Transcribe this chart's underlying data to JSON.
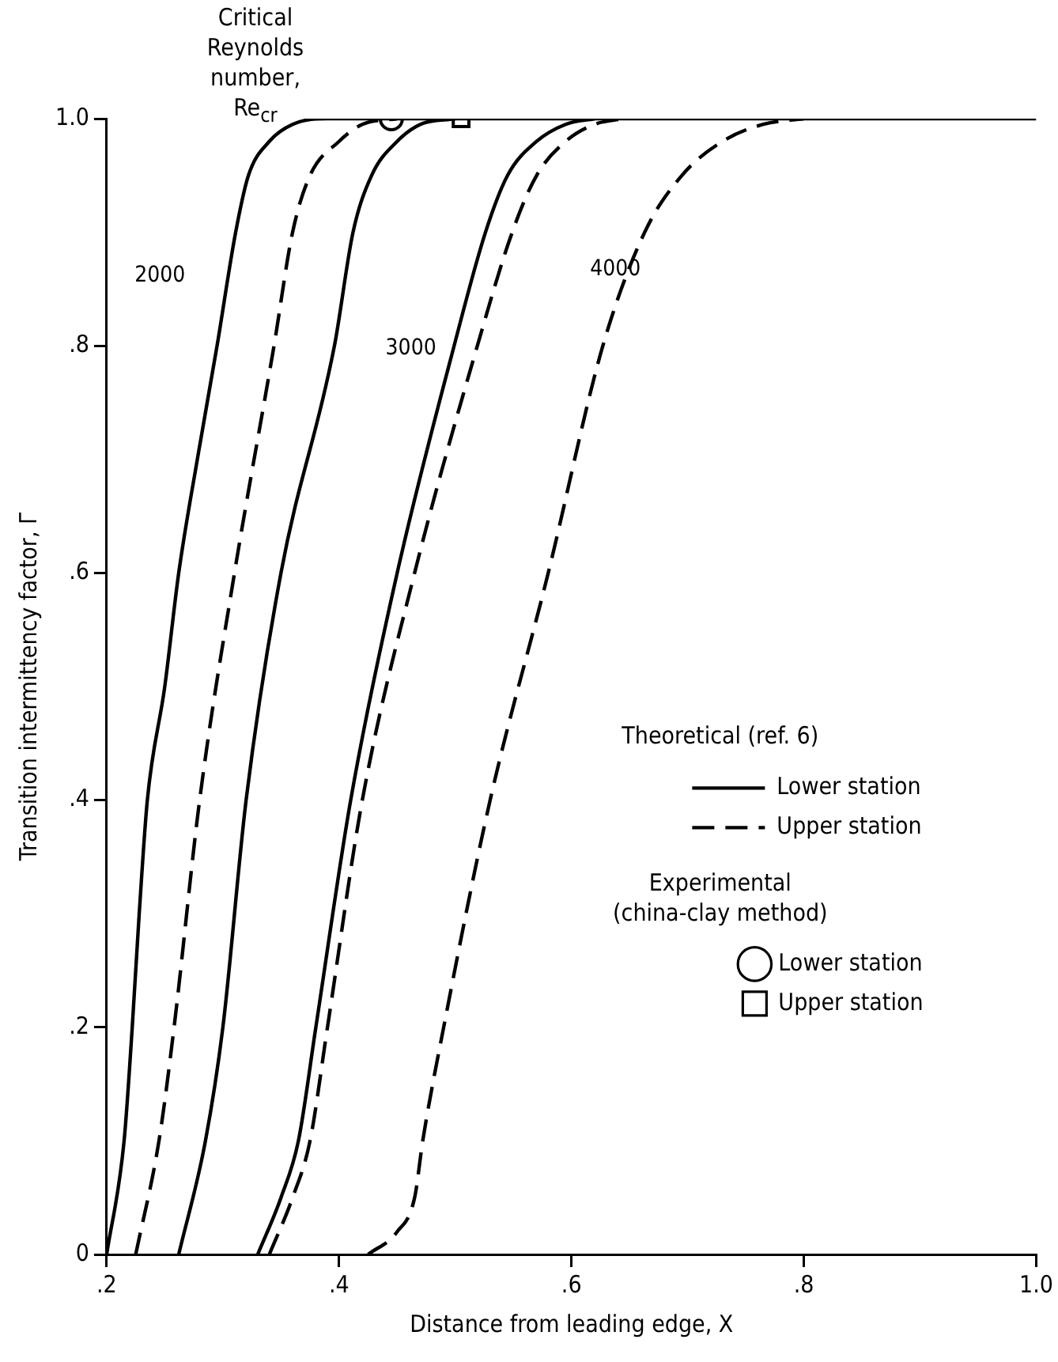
{
  "chart_data": {
    "type": "line",
    "xlabel": "Distance from leading edge, X",
    "ylabel": "Transition intermittency factor, Γ",
    "legend": "right",
    "xlim": [
      0.2,
      1.0
    ],
    "xticks": [
      {
        "value": 0.2,
        "label": ".2"
      },
      {
        "value": 0.4,
        "label": ".4"
      },
      {
        "value": 0.6,
        "label": ".6"
      },
      {
        "value": 0.8,
        "label": ".8"
      },
      {
        "value": 1.0,
        "label": "1.0"
      }
    ],
    "ylim": [
      0,
      1.0
    ],
    "yticks": [
      {
        "value": 0,
        "label": "0"
      },
      {
        "value": 0.2,
        "label": ".2"
      },
      {
        "value": 0.4,
        "label": ".4"
      },
      {
        "value": 0.6,
        "label": ".6"
      },
      {
        "value": 0.8,
        "label": ".8"
      },
      {
        "value": 1.0,
        "label": "1.0"
      }
    ],
    "grid": false,
    "annotations": [
      "Critical Reynolds number, Re$_{cr}$",
      "Theoretical (ref. 6)",
      "Experimental (china-clay method)",
      "2000",
      "3000",
      "4000"
    ],
    "series": [
      {
        "name": "Lower station",
        "line_style": "solid",
        "marker": "none",
        "color": "#000000",
        "x": [
          0.2,
          0.215,
          0.222,
          0.228,
          0.235,
          0.25,
          0.262,
          0.278,
          0.295,
          0.311,
          0.322,
          0.34,
          0.36,
          0.39,
          1.0
        ],
        "values": [
          0,
          0.1,
          0.2,
          0.3,
          0.4,
          0.5,
          0.6,
          0.7,
          0.8,
          0.9,
          0.95,
          0.98,
          0.995,
          1.0,
          1.0
        ]
      },
      {
        "name": "Upper station",
        "line_style": "dashed",
        "marker": "none",
        "color": "#000000",
        "x": [
          0.225,
          0.245,
          0.258,
          0.28,
          0.31,
          0.344,
          0.36,
          0.375,
          0.4,
          0.42,
          0.45
        ],
        "values": [
          0,
          0.1,
          0.2,
          0.4,
          0.6,
          0.8,
          0.9,
          0.95,
          0.98,
          0.995,
          1.0
        ]
      },
      {
        "line_style": "solid",
        "marker": "none",
        "color": "#000000",
        "x": [
          0.262,
          0.285,
          0.3,
          0.32,
          0.35,
          0.396,
          0.412,
          0.428,
          0.45,
          0.47,
          0.5
        ],
        "values": [
          0,
          0.1,
          0.2,
          0.4,
          0.6,
          0.8,
          0.9,
          0.95,
          0.98,
          0.995,
          1.0
        ]
      },
      {
        "line_style": "solid",
        "marker": "none",
        "color": "#000000",
        "x": [
          0.33,
          0.35,
          0.365,
          0.38,
          0.41,
          0.45,
          0.499,
          0.526,
          0.545,
          0.57,
          0.595,
          0.62
        ],
        "values": [
          0,
          0.05,
          0.1,
          0.2,
          0.4,
          0.6,
          0.8,
          0.9,
          0.95,
          0.98,
          0.995,
          1.0
        ]
      },
      {
        "line_style": "dashed",
        "marker": "none",
        "color": "#000000",
        "x": [
          0.34,
          0.36,
          0.375,
          0.39,
          0.42,
          0.465,
          0.519,
          0.549,
          0.57,
          0.595,
          0.62,
          0.645
        ],
        "values": [
          0,
          0.05,
          0.1,
          0.2,
          0.4,
          0.6,
          0.8,
          0.9,
          0.95,
          0.98,
          0.995,
          1.0
        ]
      },
      {
        "line_style": "dashed",
        "marker": "none",
        "color": "#000000",
        "x": [
          0.425,
          0.45,
          0.465,
          0.472,
          0.49,
          0.53,
          0.58,
          0.627,
          0.663,
          0.695,
          0.73,
          0.765,
          0.8
        ],
        "values": [
          0,
          0.02,
          0.05,
          0.1,
          0.2,
          0.4,
          0.6,
          0.8,
          0.9,
          0.95,
          0.98,
          0.995,
          1.0
        ]
      },
      {
        "name": "Lower station",
        "type": "scatter",
        "marker": "circle",
        "color": "#000000",
        "x": [
          0.445
        ],
        "values": [
          1.0
        ]
      },
      {
        "name": "Upper station",
        "type": "scatter",
        "marker": "square",
        "color": "#000000",
        "x": [
          0.505
        ],
        "values": [
          1.0
        ]
      }
    ]
  }
}
